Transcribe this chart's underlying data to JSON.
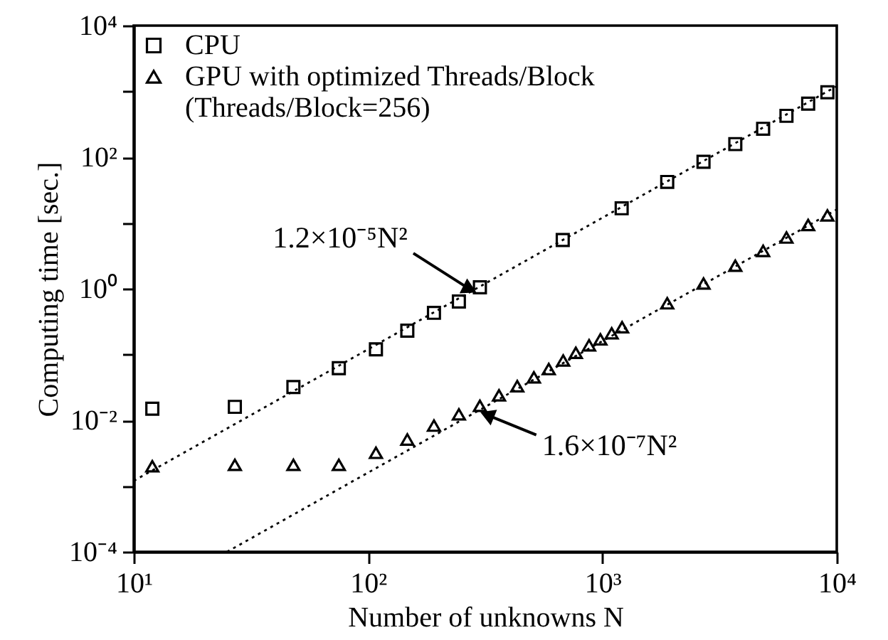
{
  "chart_data": {
    "type": "scatter",
    "xlabel": "Number of unknowns N",
    "ylabel": "Computing time [sec.]",
    "log": "xy",
    "legend": "top left",
    "grid": false,
    "xlim": [
      10,
      10000
    ],
    "xticks": [
      {
        "value": 10,
        "label": "10¹"
      },
      {
        "value": 100,
        "label": "10²"
      },
      {
        "value": 1000,
        "label": "10³"
      },
      {
        "value": 10000,
        "label": "10⁴"
      }
    ],
    "ylim": [
      0.0001,
      10000
    ],
    "yticks": [
      {
        "value": 0.0001,
        "label": "10⁻⁴"
      },
      {
        "value": 0.001,
        "label": null
      },
      {
        "value": 0.01,
        "label": "10⁻²"
      },
      {
        "value": 0.1,
        "label": null
      },
      {
        "value": 1,
        "label": "10⁰"
      },
      {
        "value": 10,
        "label": null
      },
      {
        "value": 100,
        "label": "10²"
      },
      {
        "value": 1000,
        "label": null
      },
      {
        "value": 10000,
        "label": "10⁴"
      }
    ],
    "series": [
      {
        "name": "CPU",
        "marker": "square",
        "color": "#000000",
        "x": [
          12,
          27,
          48,
          75,
          108,
          147,
          191,
          244,
          300,
          677,
          1208,
          1890,
          2700,
          3690,
          4850,
          6100,
          7550,
          9120
        ],
        "values": [
          0.015,
          0.016,
          0.032,
          0.062,
          0.12,
          0.23,
          0.43,
          0.64,
          1.05,
          5.5,
          16.7,
          42,
          85,
          158,
          270,
          425,
          650,
          970
        ]
      },
      {
        "name": "GPU with optimized Threads/Block\n(Threads/Block=256)",
        "marker": "triangle",
        "color": "#000000",
        "x": [
          12,
          27,
          48,
          75,
          108,
          147,
          191,
          244,
          300,
          362,
          433,
          510,
          590,
          680,
          770,
          877,
          980,
          1095,
          1213,
          1890,
          2700,
          3690,
          4850,
          6100,
          7550,
          9120
        ],
        "values": [
          0.002,
          0.0021,
          0.0021,
          0.0021,
          0.0032,
          0.0051,
          0.0083,
          0.0123,
          0.0166,
          0.024,
          0.033,
          0.045,
          0.06,
          0.081,
          0.106,
          0.138,
          0.17,
          0.21,
          0.26,
          0.6,
          1.2,
          2.24,
          3.76,
          6.0,
          9.3,
          13
        ]
      },
      {
        "type": "line",
        "line_style": "dotted",
        "marker": "none",
        "color": "#000000",
        "x": [
          10,
          10000
        ],
        "values": [
          0.0012,
          1200
        ]
      },
      {
        "type": "line",
        "line_style": "dotted",
        "marker": "none",
        "color": "#000000",
        "x": [
          25,
          10000
        ],
        "values": [
          0.0001,
          16
        ]
      }
    ],
    "annotations": [
      {
        "text": "1.2×10⁻⁵N²",
        "x": 300,
        "y": 1.05
      },
      {
        "text": "1.6×10⁻⁷N²",
        "x": 300,
        "y": 0.0166
      }
    ]
  }
}
